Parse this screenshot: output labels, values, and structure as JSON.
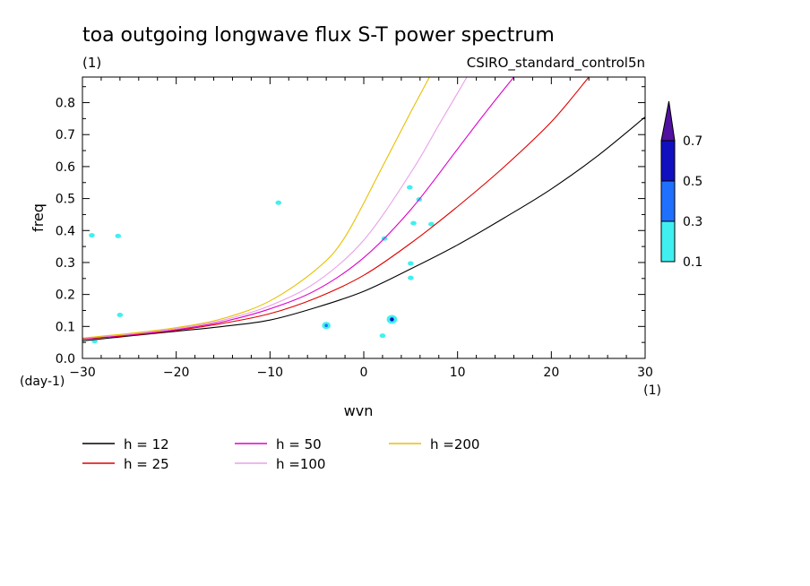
{
  "chart_data": {
    "type": "line",
    "title": "toa outgoing longwave flux S-T power spectrum",
    "subtitle_left": "(1)",
    "subtitle_right": "CSIRO_standard_control5n",
    "xlabel": "wvn",
    "ylabel": "freq",
    "x_unit": "(1)",
    "y_unit": "(day-1)",
    "xlim": [
      -30,
      30
    ],
    "ylim": [
      0,
      0.88
    ],
    "xticks": [
      -30,
      -20,
      -10,
      0,
      10,
      20,
      30
    ],
    "xtick_labels": [
      "-30",
      "-20",
      "-10",
      "0",
      "10",
      "20",
      "30"
    ],
    "yticks": [
      0.0,
      0.1,
      0.2,
      0.3,
      0.4,
      0.5,
      0.6,
      0.7,
      0.8
    ],
    "ytick_labels": [
      "0.0",
      "0.1",
      "0.2",
      "0.3",
      "0.4",
      "0.5",
      "0.6",
      "0.7",
      "0.8"
    ],
    "series": [
      {
        "name": "h = 12",
        "color": "#000000",
        "x": [
          -30,
          -25,
          -20,
          -15,
          -10,
          -5,
          0,
          5,
          10,
          15,
          20,
          25,
          30
        ],
        "y": [
          0.055,
          0.07,
          0.085,
          0.1,
          0.12,
          0.16,
          0.21,
          0.28,
          0.355,
          0.44,
          0.53,
          0.635,
          0.755
        ]
      },
      {
        "name": "h = 25",
        "color": "#e00000",
        "x": [
          -30,
          -25,
          -20,
          -15,
          -10,
          -5,
          0,
          5,
          10,
          15,
          20,
          24
        ],
        "y": [
          0.06,
          0.072,
          0.088,
          0.11,
          0.14,
          0.19,
          0.26,
          0.36,
          0.475,
          0.6,
          0.74,
          0.88
        ]
      },
      {
        "name": "h = 50",
        "color": "#dd00c8",
        "x": [
          -30,
          -25,
          -20,
          -15,
          -10,
          -5,
          0,
          5,
          10,
          13,
          16
        ],
        "y": [
          0.062,
          0.074,
          0.09,
          0.115,
          0.155,
          0.215,
          0.315,
          0.465,
          0.655,
          0.77,
          0.88
        ]
      },
      {
        "name": "h =100",
        "color": "#e8a0e8",
        "x": [
          -30,
          -25,
          -20,
          -15,
          -10,
          -5,
          0,
          5,
          8,
          11
        ],
        "y": [
          0.063,
          0.076,
          0.093,
          0.12,
          0.165,
          0.24,
          0.37,
          0.58,
          0.73,
          0.88
        ]
      },
      {
        "name": "h =200",
        "color": "#e8c000",
        "x": [
          -30,
          -25,
          -20,
          -15,
          -10,
          -5,
          -2,
          2,
          5,
          7
        ],
        "y": [
          0.064,
          0.078,
          0.096,
          0.125,
          0.18,
          0.28,
          0.38,
          0.6,
          0.77,
          0.88
        ]
      }
    ],
    "contour_levels": [
      0.1,
      0.3,
      0.5,
      0.7
    ],
    "colorbar_labels": [
      "0.1",
      "0.3",
      "0.5",
      "0.7"
    ],
    "colorbar_colors": [
      "#40f0f0",
      "#2070ff",
      "#1010c0",
      "#5010a0"
    ],
    "blobs": [
      {
        "x": -28.7,
        "y": 0.054,
        "level": 0.1
      },
      {
        "x": -29.0,
        "y": 0.385,
        "level": 0.1
      },
      {
        "x": -26.2,
        "y": 0.383,
        "level": 0.1
      },
      {
        "x": -26.0,
        "y": 0.136,
        "level": 0.1
      },
      {
        "x": -9.1,
        "y": 0.487,
        "level": 0.1
      },
      {
        "x": -4.0,
        "y": 0.103,
        "level": 0.3
      },
      {
        "x": 2.0,
        "y": 0.071,
        "level": 0.1
      },
      {
        "x": 3.0,
        "y": 0.122,
        "level": 0.5
      },
      {
        "x": 2.2,
        "y": 0.375,
        "level": 0.1
      },
      {
        "x": 4.9,
        "y": 0.535,
        "level": 0.1
      },
      {
        "x": 5.3,
        "y": 0.423,
        "level": 0.1
      },
      {
        "x": 5.0,
        "y": 0.297,
        "level": 0.1
      },
      {
        "x": 5.0,
        "y": 0.252,
        "level": 0.1
      },
      {
        "x": 5.9,
        "y": 0.497,
        "level": 0.1
      },
      {
        "x": 7.2,
        "y": 0.42,
        "level": 0.1
      }
    ],
    "grid": false,
    "legend_position": "bottom-left"
  }
}
